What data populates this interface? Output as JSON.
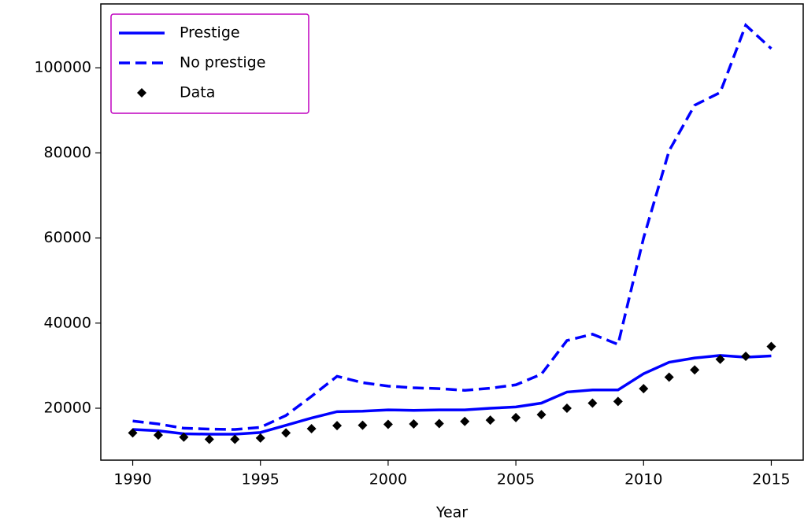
{
  "chart_data": {
    "type": "line",
    "xlabel": "Year",
    "x": [
      1990,
      1991,
      1992,
      1993,
      1994,
      1995,
      1996,
      1997,
      1998,
      1999,
      2000,
      2001,
      2002,
      2003,
      2004,
      2005,
      2006,
      2007,
      2008,
      2009,
      2010,
      2011,
      2012,
      2013,
      2014,
      2015
    ],
    "series": [
      {
        "name": "Prestige",
        "color": "#0000ff",
        "linestyle": "solid",
        "values": [
          15000,
          14700,
          14000,
          13900,
          13900,
          14300,
          16000,
          17700,
          19200,
          19300,
          19600,
          19500,
          19600,
          19600,
          20000,
          20300,
          21200,
          23800,
          24300,
          24300,
          28100,
          30800,
          31800,
          32400,
          32000,
          32300
        ]
      },
      {
        "name": "No prestige",
        "color": "#0000ff",
        "linestyle": "dashed",
        "values": [
          17000,
          16300,
          15300,
          15100,
          15000,
          15500,
          18300,
          22800,
          27500,
          26000,
          25200,
          24800,
          24600,
          24200,
          24700,
          25500,
          28000,
          35900,
          37400,
          35000,
          60000,
          80500,
          91200,
          94200,
          110000,
          104500
        ]
      },
      {
        "name": "Data",
        "color": "#000000",
        "linestyle": "none",
        "marker": "diamond",
        "values": [
          14200,
          13700,
          13200,
          12700,
          12700,
          13000,
          14200,
          15200,
          15900,
          16000,
          16200,
          16300,
          16400,
          16900,
          17200,
          17800,
          18500,
          20000,
          21200,
          21600,
          24600,
          27300,
          29000,
          31500,
          32200,
          34500
        ]
      }
    ],
    "xlim": [
      1988.75,
      2016.25
    ],
    "xticks": [
      1990,
      1995,
      2000,
      2005,
      2010,
      2015
    ],
    "ylim": [
      7800,
      115000
    ],
    "yticks": [
      20000,
      40000,
      60000,
      80000,
      100000
    ],
    "legend": "upper left",
    "legend_border_color": "#bf00bf"
  }
}
